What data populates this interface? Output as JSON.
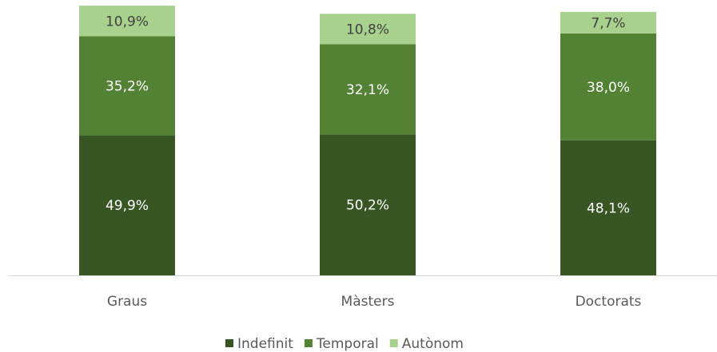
{
  "chart_data": {
    "type": "stacked_bar",
    "categories": [
      "Graus",
      "Màsters",
      "Doctorats"
    ],
    "series": [
      {
        "name": "Indefinit",
        "color": "#375623",
        "values": [
          49.9,
          50.2,
          48.1
        ],
        "value_labels": [
          "49,9%",
          "50,2%",
          "48,1%"
        ]
      },
      {
        "name": "Temporal",
        "color": "#548235",
        "values": [
          35.2,
          32.1,
          38.0
        ],
        "value_labels": [
          "35,2%",
          "32,1%",
          "38,0%"
        ]
      },
      {
        "name": "Autònom",
        "color": "#a9d18e",
        "values": [
          10.9,
          10.8,
          7.7
        ],
        "value_labels": [
          "10,9%",
          "10,8%",
          "7,7%"
        ]
      }
    ],
    "legend": "bottom"
  }
}
